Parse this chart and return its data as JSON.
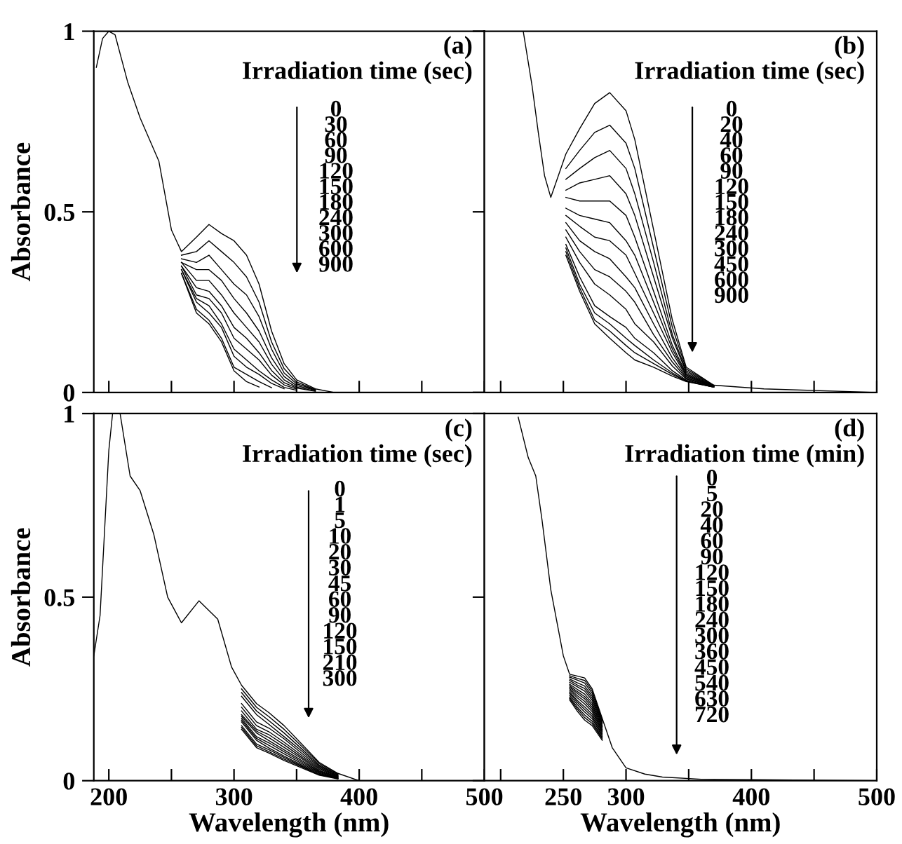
{
  "chart_data": [
    {
      "type": "line",
      "ylabel": "Absorbance",
      "color": "#000000",
      "xlim": [
        188,
        500
      ],
      "ylim": [
        0,
        1
      ],
      "xticks": [
        200,
        {
          "value": 250,
          "label": null
        },
        300,
        {
          "value": 350,
          "label": null
        },
        400,
        {
          "value": 450,
          "label": null
        },
        500
      ],
      "yticks": [
        0,
        0.5,
        1
      ],
      "tick_labels": "y",
      "annotations": [
        "(a)",
        "Irradiation time (sec)",
        "0",
        "30",
        "60",
        "90",
        "120",
        "150",
        "180",
        "240",
        "300",
        "600",
        "900"
      ],
      "x": [
        190,
        195,
        200,
        205,
        215,
        225,
        240,
        250,
        258,
        270,
        280,
        290,
        300,
        310,
        320,
        330,
        340,
        350,
        365,
        380,
        500
      ],
      "series": [
        {
          "values": [
            0.9,
            0.98,
            1.0,
            0.99,
            0.86,
            0.76,
            0.64,
            0.45,
            0.39,
            0.43,
            0.465,
            0.44,
            0.42,
            0.38,
            0.3,
            0.17,
            0.08,
            0.035,
            0.01,
            0,
            0
          ]
        },
        {
          "x": [
            258,
            270,
            280,
            290,
            300,
            310,
            320,
            330,
            340,
            350,
            365
          ],
          "values": [
            0.38,
            0.39,
            0.42,
            0.39,
            0.36,
            0.32,
            0.25,
            0.14,
            0.066,
            0.029,
            0.008
          ]
        },
        {
          "x": [
            258,
            270,
            280,
            290,
            300,
            310,
            320,
            330,
            340,
            350,
            365
          ],
          "values": [
            0.37,
            0.36,
            0.38,
            0.34,
            0.3,
            0.27,
            0.21,
            0.12,
            0.054,
            0.024,
            0.007
          ]
        },
        {
          "x": [
            258,
            270,
            280,
            290,
            300,
            310,
            320,
            330,
            340,
            350,
            365
          ],
          "values": [
            0.36,
            0.34,
            0.34,
            0.31,
            0.26,
            0.22,
            0.17,
            0.096,
            0.044,
            0.019,
            0.006
          ]
        },
        {
          "x": [
            258,
            270,
            280,
            290,
            300,
            310,
            320,
            330,
            340,
            350,
            365
          ],
          "values": [
            0.36,
            0.31,
            0.31,
            0.27,
            0.22,
            0.18,
            0.14,
            0.078,
            0.035,
            0.015,
            0.004
          ]
        },
        {
          "x": [
            258,
            270,
            280,
            290,
            300,
            310,
            320,
            330,
            340,
            350,
            365
          ],
          "values": [
            0.35,
            0.29,
            0.28,
            0.24,
            0.18,
            0.15,
            0.11,
            0.061,
            0.027,
            0.012,
            0.003
          ]
        },
        {
          "x": [
            258,
            270,
            280,
            290,
            300,
            310,
            320,
            330,
            340,
            350
          ],
          "values": [
            0.35,
            0.27,
            0.26,
            0.22,
            0.15,
            0.12,
            0.09,
            0.048,
            0.021,
            0.009
          ]
        },
        {
          "x": [
            258,
            270,
            280,
            290,
            300,
            310,
            320,
            330,
            340,
            350
          ],
          "values": [
            0.34,
            0.26,
            0.24,
            0.19,
            0.12,
            0.09,
            0.06,
            0.035,
            0.014,
            0.006
          ]
        },
        {
          "x": [
            258,
            270,
            280,
            290,
            300,
            310,
            320,
            330,
            340
          ],
          "values": [
            0.34,
            0.25,
            0.22,
            0.18,
            0.1,
            0.07,
            0.05,
            0.025,
            0.01
          ]
        },
        {
          "x": [
            258,
            270,
            280,
            290,
            300,
            310,
            320,
            330
          ],
          "values": [
            0.33,
            0.23,
            0.2,
            0.15,
            0.07,
            0.05,
            0.03,
            0.013
          ]
        },
        {
          "x": [
            258,
            270,
            280,
            290,
            300,
            310,
            320
          ],
          "values": [
            0.33,
            0.22,
            0.19,
            0.14,
            0.06,
            0.03,
            0.015
          ]
        }
      ]
    },
    {
      "type": "line",
      "color": "#000000",
      "xlim": [
        187,
        500
      ],
      "ylim": [
        0,
        1
      ],
      "xticks": [
        {
          "value": 200,
          "label": null
        },
        250,
        300,
        {
          "value": 350,
          "label": null
        },
        400,
        {
          "value": 450,
          "label": null
        },
        500
      ],
      "yticks": [
        {
          "value": 0,
          "label": null
        },
        {
          "value": 0.5,
          "label": null
        },
        {
          "value": 1,
          "label": null
        }
      ],
      "tick_labels": false,
      "annotations": [
        "(b)",
        "Irradiation time (sec)",
        "0",
        "20",
        "40",
        "60",
        "90",
        "120",
        "150",
        "180",
        "240",
        "300",
        "450",
        "600",
        "900"
      ],
      "x": [
        218,
        225,
        230,
        235,
        240,
        252,
        263,
        275,
        287,
        300,
        307,
        322,
        337,
        348,
        370,
        410,
        500
      ],
      "series": [
        {
          "values": [
            1.0,
            0.85,
            0.72,
            0.6,
            0.54,
            0.66,
            0.73,
            0.8,
            0.83,
            0.78,
            0.7,
            0.45,
            0.2,
            0.07,
            0.02,
            0.01,
            0
          ]
        },
        {
          "x": [
            252,
            263,
            275,
            287,
            300,
            307,
            322,
            337,
            348,
            370
          ],
          "values": [
            0.62,
            0.67,
            0.72,
            0.74,
            0.69,
            0.62,
            0.4,
            0.18,
            0.065,
            0.02
          ]
        },
        {
          "x": [
            252,
            263,
            275,
            287,
            300,
            307,
            322,
            337,
            348,
            370
          ],
          "values": [
            0.59,
            0.62,
            0.65,
            0.67,
            0.62,
            0.55,
            0.36,
            0.16,
            0.06,
            0.019
          ]
        },
        {
          "x": [
            252,
            263,
            275,
            287,
            300,
            307,
            322,
            337,
            348,
            370
          ],
          "values": [
            0.56,
            0.58,
            0.59,
            0.6,
            0.55,
            0.49,
            0.32,
            0.15,
            0.056,
            0.018
          ]
        },
        {
          "x": [
            252,
            263,
            275,
            287,
            300,
            307,
            322,
            337,
            348,
            370
          ],
          "values": [
            0.54,
            0.53,
            0.53,
            0.53,
            0.49,
            0.43,
            0.28,
            0.13,
            0.052,
            0.018
          ]
        },
        {
          "x": [
            252,
            263,
            275,
            287,
            300,
            307,
            322,
            337,
            348,
            370
          ],
          "values": [
            0.51,
            0.49,
            0.48,
            0.47,
            0.42,
            0.38,
            0.25,
            0.12,
            0.049,
            0.017
          ]
        },
        {
          "x": [
            252,
            263,
            275,
            287,
            300,
            307,
            322,
            337,
            348,
            370
          ],
          "values": [
            0.49,
            0.46,
            0.43,
            0.42,
            0.38,
            0.33,
            0.22,
            0.11,
            0.046,
            0.017
          ]
        },
        {
          "x": [
            252,
            263,
            275,
            287,
            300,
            307,
            322,
            337,
            348,
            370
          ],
          "values": [
            0.47,
            0.42,
            0.39,
            0.37,
            0.32,
            0.29,
            0.19,
            0.095,
            0.043,
            0.017
          ]
        },
        {
          "x": [
            252,
            263,
            275,
            287,
            300,
            307,
            322,
            337,
            348,
            370
          ],
          "values": [
            0.45,
            0.39,
            0.34,
            0.32,
            0.28,
            0.25,
            0.16,
            0.084,
            0.04,
            0.016
          ]
        },
        {
          "x": [
            252,
            263,
            275,
            287,
            300,
            307,
            322,
            337,
            348,
            370
          ],
          "values": [
            0.43,
            0.36,
            0.3,
            0.27,
            0.23,
            0.19,
            0.14,
            0.073,
            0.037,
            0.016
          ]
        },
        {
          "x": [
            252,
            263,
            275,
            287,
            300,
            307,
            322,
            337,
            348,
            370
          ],
          "values": [
            0.41,
            0.32,
            0.24,
            0.21,
            0.18,
            0.15,
            0.11,
            0.06,
            0.034,
            0.015
          ]
        },
        {
          "x": [
            252,
            263,
            275,
            287,
            300,
            307,
            322,
            337,
            348,
            370
          ],
          "values": [
            0.4,
            0.3,
            0.22,
            0.19,
            0.15,
            0.13,
            0.09,
            0.054,
            0.032,
            0.015
          ]
        },
        {
          "x": [
            252,
            263,
            275,
            287,
            300,
            307,
            322,
            337,
            348,
            370
          ],
          "values": [
            0.39,
            0.29,
            0.2,
            0.17,
            0.13,
            0.11,
            0.08,
            0.05,
            0.031,
            0.015
          ]
        },
        {
          "x": [
            252,
            263,
            275,
            287,
            300,
            307,
            322,
            337,
            348,
            370
          ],
          "values": [
            0.38,
            0.28,
            0.19,
            0.15,
            0.11,
            0.09,
            0.07,
            0.045,
            0.03,
            0.015
          ]
        }
      ]
    },
    {
      "type": "line",
      "xlabel": "Wavelength (nm)",
      "ylabel": "Absorbance",
      "color": "#000000",
      "xlim": [
        188,
        500
      ],
      "ylim": [
        0,
        1
      ],
      "xticks": [
        200,
        {
          "value": 250,
          "label": null
        },
        300,
        {
          "value": 350,
          "label": null
        },
        400,
        {
          "value": 450,
          "label": null
        },
        500
      ],
      "yticks": [
        0,
        0.5,
        1
      ],
      "annotations": [
        "(c)",
        "Irradiation time (sec)",
        "0",
        "1",
        "5",
        "10",
        "20",
        "30",
        "45",
        "60",
        "90",
        "120",
        "150",
        "210",
        "300"
      ],
      "x": [
        209,
        217,
        225,
        236,
        247,
        258,
        272,
        287,
        298,
        306,
        318,
        328,
        340,
        354,
        368,
        383,
        400,
        500
      ],
      "series": [
        {
          "values": [
            1.0,
            0.83,
            0.79,
            0.67,
            0.5,
            0.43,
            0.49,
            0.44,
            0.31,
            0.26,
            0.21,
            0.185,
            0.15,
            0.1,
            0.05,
            0.02,
            0,
            0
          ]
        },
        {
          "x": [
            306,
            318,
            328,
            340,
            354,
            368,
            383
          ],
          "values": [
            0.25,
            0.2,
            0.174,
            0.14,
            0.094,
            0.047,
            0.019
          ]
        },
        {
          "x": [
            306,
            318,
            328,
            340,
            354,
            368,
            383
          ],
          "values": [
            0.24,
            0.19,
            0.163,
            0.13,
            0.087,
            0.043,
            0.017
          ]
        },
        {
          "x": [
            306,
            318,
            328,
            340,
            354,
            368,
            383
          ],
          "values": [
            0.23,
            0.18,
            0.153,
            0.12,
            0.081,
            0.04,
            0.016
          ]
        },
        {
          "x": [
            306,
            318,
            328,
            340,
            354,
            368,
            383
          ],
          "values": [
            0.21,
            0.16,
            0.143,
            0.114,
            0.075,
            0.037,
            0.014
          ]
        },
        {
          "x": [
            306,
            318,
            328,
            340,
            354,
            368,
            383
          ],
          "values": [
            0.2,
            0.15,
            0.133,
            0.105,
            0.069,
            0.034,
            0.013
          ]
        },
        {
          "x": [
            306,
            318,
            328,
            340,
            354,
            368,
            383
          ],
          "values": [
            0.19,
            0.14,
            0.125,
            0.098,
            0.064,
            0.031,
            0.012
          ]
        },
        {
          "x": [
            306,
            318,
            328,
            340,
            354,
            368,
            383
          ],
          "values": [
            0.18,
            0.135,
            0.117,
            0.091,
            0.06,
            0.028,
            0.011
          ]
        },
        {
          "x": [
            306,
            318,
            328,
            340,
            354,
            368,
            383
          ],
          "values": [
            0.175,
            0.13,
            0.109,
            0.084,
            0.055,
            0.026,
            0.01
          ]
        },
        {
          "x": [
            306,
            318,
            328,
            340,
            354,
            368,
            383
          ],
          "values": [
            0.17,
            0.12,
            0.103,
            0.079,
            0.051,
            0.024,
            0.009
          ]
        },
        {
          "x": [
            306,
            318,
            328,
            340,
            354,
            368,
            383
          ],
          "values": [
            0.165,
            0.115,
            0.096,
            0.073,
            0.047,
            0.022,
            0.008
          ]
        },
        {
          "x": [
            306,
            318,
            328,
            340,
            354,
            368,
            383
          ],
          "values": [
            0.16,
            0.11,
            0.089,
            0.067,
            0.043,
            0.02,
            0.007
          ]
        },
        {
          "x": [
            306,
            318,
            328,
            340,
            354,
            368,
            383
          ],
          "values": [
            0.15,
            0.1,
            0.084,
            0.063,
            0.04,
            0.018,
            0.006
          ]
        },
        {
          "x": [
            306,
            318,
            328,
            340,
            354,
            368,
            383
          ],
          "values": [
            0.145,
            0.095,
            0.079,
            0.059,
            0.038,
            0.016,
            0.006
          ]
        },
        {
          "x": [
            306,
            318,
            328,
            340,
            354,
            368,
            383
          ],
          "values": [
            0.14,
            0.09,
            0.075,
            0.055,
            0.035,
            0.015,
            0.005
          ]
        },
        {
          "x": [
            188,
            193,
            200,
            203
          ],
          "values": [
            0.34,
            0.45,
            0.9,
            1.0
          ]
        }
      ]
    },
    {
      "type": "line",
      "xlabel": "Wavelength (nm)",
      "color": "#000000",
      "xlim": [
        187,
        500
      ],
      "ylim": [
        0,
        1
      ],
      "xticks": [
        {
          "value": 200,
          "label": null
        },
        250,
        300,
        {
          "value": 350,
          "label": null
        },
        400,
        {
          "value": 450,
          "label": null
        },
        500
      ],
      "yticks": [
        {
          "value": 0,
          "label": null
        },
        {
          "value": 0.5,
          "label": null
        },
        {
          "value": 1,
          "label": null
        }
      ],
      "tick_labels": "x",
      "annotations": [
        "(d)",
        "Irradiation time (min)",
        "0",
        "5",
        "20",
        "40",
        "60",
        "90",
        "120",
        "150",
        "180",
        "240",
        "300",
        "360",
        "450",
        "540",
        "630",
        "720"
      ],
      "x": [
        214,
        222,
        228,
        233,
        240,
        250,
        255,
        261,
        267,
        273,
        281,
        289,
        300,
        315,
        329,
        360,
        500
      ],
      "series": [
        {
          "values": [
            0.99,
            0.88,
            0.83,
            0.71,
            0.52,
            0.34,
            0.29,
            0.285,
            0.28,
            0.25,
            0.17,
            0.09,
            0.035,
            0.018,
            0.01,
            0.004,
            0
          ]
        },
        {
          "x": [
            255,
            261,
            267,
            273,
            281
          ],
          "values": [
            0.286,
            0.279,
            0.273,
            0.244,
            0.166
          ]
        },
        {
          "x": [
            255,
            261,
            267,
            273,
            281
          ],
          "values": [
            0.282,
            0.274,
            0.266,
            0.238,
            0.163
          ]
        },
        {
          "x": [
            255,
            261,
            267,
            273,
            281
          ],
          "values": [
            0.277,
            0.267,
            0.258,
            0.231,
            0.159
          ]
        },
        {
          "x": [
            255,
            261,
            267,
            273,
            281
          ],
          "values": [
            0.273,
            0.261,
            0.251,
            0.225,
            0.155
          ]
        },
        {
          "x": [
            255,
            261,
            267,
            273,
            281
          ],
          "values": [
            0.268,
            0.256,
            0.244,
            0.219,
            0.151
          ]
        },
        {
          "x": [
            255,
            261,
            267,
            273,
            281
          ],
          "values": [
            0.263,
            0.249,
            0.236,
            0.212,
            0.147
          ]
        },
        {
          "x": [
            255,
            261,
            267,
            273,
            281
          ],
          "values": [
            0.259,
            0.243,
            0.229,
            0.206,
            0.144
          ]
        },
        {
          "x": [
            255,
            261,
            267,
            273,
            281
          ],
          "values": [
            0.255,
            0.238,
            0.223,
            0.2,
            0.14
          ]
        },
        {
          "x": [
            255,
            261,
            267,
            273,
            281
          ],
          "values": [
            0.251,
            0.232,
            0.216,
            0.194,
            0.136
          ]
        },
        {
          "x": [
            255,
            261,
            267,
            273,
            281
          ],
          "values": [
            0.247,
            0.226,
            0.209,
            0.188,
            0.133
          ]
        },
        {
          "x": [
            255,
            261,
            267,
            273,
            281
          ],
          "values": [
            0.242,
            0.219,
            0.201,
            0.181,
            0.129
          ]
        },
        {
          "x": [
            255,
            261,
            267,
            273,
            281
          ],
          "values": [
            0.238,
            0.214,
            0.194,
            0.175,
            0.125
          ]
        },
        {
          "x": [
            255,
            261,
            267,
            273,
            281
          ],
          "values": [
            0.233,
            0.208,
            0.187,
            0.169,
            0.121
          ]
        },
        {
          "x": [
            255,
            261,
            267,
            273,
            281
          ],
          "values": [
            0.228,
            0.201,
            0.179,
            0.162,
            0.117
          ]
        },
        {
          "x": [
            255,
            261,
            267,
            273,
            281
          ],
          "values": [
            0.224,
            0.196,
            0.172,
            0.156,
            0.114
          ]
        },
        {
          "x": [
            255,
            261,
            267,
            273,
            281
          ],
          "values": [
            0.22,
            0.19,
            0.165,
            0.15,
            0.11
          ]
        }
      ]
    }
  ]
}
